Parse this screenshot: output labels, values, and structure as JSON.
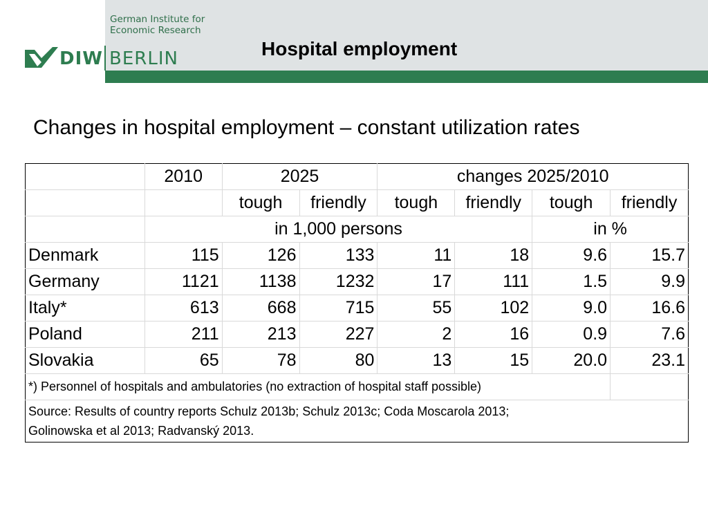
{
  "header": {
    "institute_line1": "German Institute for",
    "institute_line2": "Economic Research",
    "logo_diw": "DIW",
    "logo_berlin": "BERLIN",
    "title": "Hospital employment"
  },
  "subtitle": "Changes in hospital employment – constant utilization rates",
  "table": {
    "head_2010": "2010",
    "head_2025": "2025",
    "head_changes": "changes 2025/2010",
    "tough": "tough",
    "friendly": "friendly",
    "unit_persons": "in 1,000 persons",
    "unit_percent": "in %",
    "rows": [
      {
        "country": "Denmark",
        "v2010": "115",
        "tough2025": "126",
        "friendly2025": "133",
        "tough_abs": "11",
        "friendly_abs": "18",
        "tough_pct": "9.6",
        "friendly_pct": "15.7"
      },
      {
        "country": "Germany",
        "v2010": "1121",
        "tough2025": "1138",
        "friendly2025": "1232",
        "tough_abs": "17",
        "friendly_abs": "111",
        "tough_pct": "1.5",
        "friendly_pct": "9.9"
      },
      {
        "country": "Italy*",
        "v2010": "613",
        "tough2025": "668",
        "friendly2025": "715",
        "tough_abs": "55",
        "friendly_abs": "102",
        "tough_pct": "9.0",
        "friendly_pct": "16.6"
      },
      {
        "country": "Poland",
        "v2010": "211",
        "tough2025": "213",
        "friendly2025": "227",
        "tough_abs": "2",
        "friendly_abs": "16",
        "tough_pct": "0.9",
        "friendly_pct": "7.6"
      },
      {
        "country": "Slovakia",
        "v2010": "65",
        "tough2025": "78",
        "friendly2025": "80",
        "tough_abs": "13",
        "friendly_abs": "15",
        "tough_pct": "20.0",
        "friendly_pct": "23.1"
      }
    ],
    "footnote": "*) Personnel of hospitals and ambulatories (no extraction of hospital staff possible)",
    "source_line1": "Source: Results of country reports Schulz 2013b; Schulz 2013c; Coda Moscarola 2013;",
    "source_line2": "Golinowska et al 2013; Radvanský 2013."
  }
}
